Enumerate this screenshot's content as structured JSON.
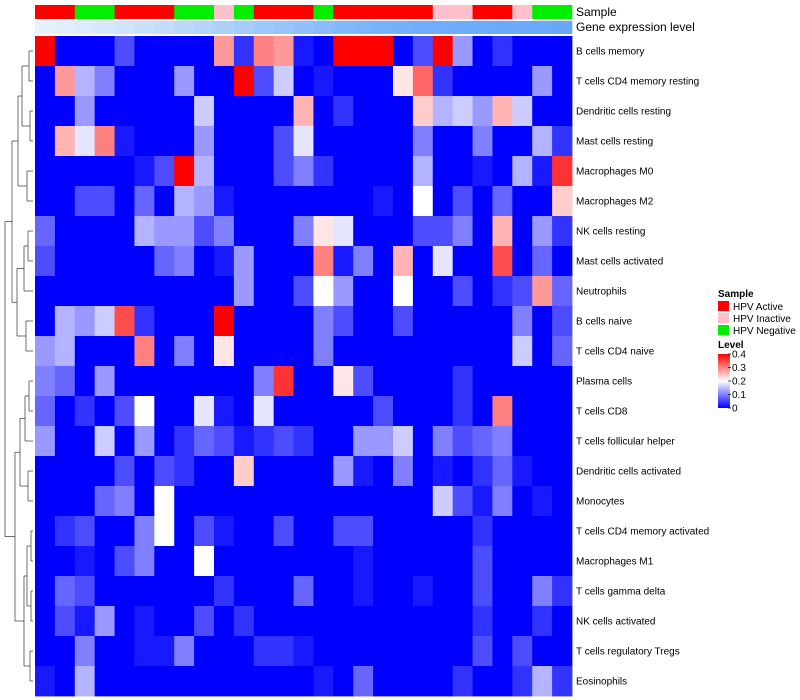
{
  "chart_data": {
    "type": "heatmap",
    "annotation_labels": {
      "sample": "Sample",
      "gene": "Gene expression level"
    },
    "sample_groups": [
      "HPV Active",
      "HPV Active",
      "HPV Negative",
      "HPV Negative",
      "HPV Active",
      "HPV Active",
      "HPV Active",
      "HPV Negative",
      "HPV Negative",
      "HPV Inactive",
      "HPV Negative",
      "HPV Active",
      "HPV Active",
      "HPV Active",
      "HPV Negative",
      "HPV Active",
      "HPV Active",
      "HPV Active",
      "HPV Active",
      "HPV Active",
      "HPV Inactive",
      "HPV Inactive",
      "HPV Active",
      "HPV Active",
      "HPV Inactive",
      "HPV Negative",
      "HPV Negative"
    ],
    "gene_expression_colors": [
      "#e6f2fb",
      "#e1effb",
      "#dcecfb",
      "#d6e9fb",
      "#d0e5fb",
      "#c9e1fb",
      "#c2dcfb",
      "#bbd8fb",
      "#b4d4fb",
      "#add0fb",
      "#a6ccfb",
      "#9fc8fb",
      "#98c4fb",
      "#91c0fb",
      "#8abcfb",
      "#83b8fb",
      "#7db5fb",
      "#78b2fb",
      "#74b0fb",
      "#71aefb",
      "#6facfb",
      "#6dabfb",
      "#6caafb",
      "#6ba9fb",
      "#6aa9fb",
      "#69a8fb",
      "#68a8fb"
    ],
    "rows": [
      "B cells memory",
      "T cells CD4 memory resting",
      "Dendritic cells resting",
      "Mast cells resting",
      "Macrophages M0",
      "Macrophages M2",
      "NK cells resting",
      "Mast cells activated",
      "Neutrophils",
      "B cells naive",
      "T cells CD4 naive",
      "Plasma cells",
      "T cells CD8",
      "T cells follicular helper",
      "Dendritic cells activated",
      "Monocytes",
      "T cells CD4 memory activated",
      "Macrophages M1",
      "T cells gamma delta",
      "NK cells activated",
      "T cells regulatory  Tregs",
      "Eosinophils"
    ],
    "values": [
      [
        0.4,
        0.0,
        0.0,
        0.0,
        0.06,
        0.0,
        0.0,
        0.0,
        0.0,
        0.28,
        0.04,
        0.3,
        0.28,
        0.02,
        0.0,
        0.4,
        0.4,
        0.4,
        0.0,
        0.06,
        0.4,
        0.12,
        0.0,
        0.04,
        0.0,
        0.0,
        0.0
      ],
      [
        0.0,
        0.28,
        0.14,
        0.1,
        0.0,
        0.0,
        0.0,
        0.12,
        0.0,
        0.0,
        0.4,
        0.06,
        0.16,
        0.0,
        0.02,
        0.0,
        0.0,
        0.0,
        0.22,
        0.32,
        0.04,
        0.0,
        0.0,
        0.0,
        0.0,
        0.12,
        0.0
      ],
      [
        0.0,
        0.0,
        0.12,
        0.0,
        0.0,
        0.0,
        0.0,
        0.0,
        0.16,
        0.0,
        0.0,
        0.0,
        0.0,
        0.26,
        0.0,
        0.04,
        0.0,
        0.0,
        0.0,
        0.24,
        0.14,
        0.16,
        0.12,
        0.26,
        0.16,
        0.0,
        0.0
      ],
      [
        0.0,
        0.26,
        0.18,
        0.3,
        0.02,
        0.0,
        0.0,
        0.0,
        0.12,
        0.0,
        0.0,
        0.0,
        0.06,
        0.18,
        0.0,
        0.0,
        0.0,
        0.0,
        0.0,
        0.1,
        0.0,
        0.0,
        0.1,
        0.0,
        0.0,
        0.14,
        0.04
      ],
      [
        0.0,
        0.0,
        0.0,
        0.0,
        0.0,
        0.02,
        0.06,
        0.4,
        0.14,
        0.0,
        0.0,
        0.0,
        0.06,
        0.1,
        0.04,
        0.0,
        0.0,
        0.0,
        0.0,
        0.14,
        0.0,
        0.0,
        0.02,
        0.0,
        0.14,
        0.02,
        0.36
      ],
      [
        0.0,
        0.0,
        0.06,
        0.06,
        0.0,
        0.08,
        0.0,
        0.14,
        0.12,
        0.02,
        0.0,
        0.0,
        0.0,
        0.0,
        0.0,
        0.0,
        0.0,
        0.02,
        0.0,
        0.2,
        0.0,
        0.06,
        0.0,
        0.08,
        0.0,
        0.0,
        0.24
      ],
      [
        0.08,
        0.0,
        0.0,
        0.0,
        0.0,
        0.14,
        0.12,
        0.12,
        0.06,
        0.1,
        0.0,
        0.0,
        0.0,
        0.1,
        0.22,
        0.18,
        0.0,
        0.0,
        0.0,
        0.06,
        0.06,
        0.1,
        0.0,
        0.26,
        0.0,
        0.12,
        0.04
      ],
      [
        0.06,
        0.0,
        0.0,
        0.0,
        0.0,
        0.0,
        0.08,
        0.1,
        0.0,
        0.02,
        0.12,
        0.0,
        0.0,
        0.0,
        0.3,
        0.02,
        0.1,
        0.0,
        0.26,
        0.0,
        0.18,
        0.0,
        0.0,
        0.34,
        0.0,
        0.08,
        0.0
      ],
      [
        0.0,
        0.0,
        0.0,
        0.0,
        0.0,
        0.0,
        0.0,
        0.0,
        0.0,
        0.0,
        0.12,
        0.0,
        0.0,
        0.06,
        0.2,
        0.12,
        0.0,
        0.0,
        0.2,
        0.0,
        0.0,
        0.06,
        0.0,
        0.04,
        0.06,
        0.28,
        0.08
      ],
      [
        0.0,
        0.14,
        0.12,
        0.16,
        0.34,
        0.04,
        0.0,
        0.0,
        0.0,
        0.4,
        0.0,
        0.0,
        0.0,
        0.0,
        0.1,
        0.06,
        0.0,
        0.0,
        0.06,
        0.0,
        0.0,
        0.0,
        0.0,
        0.0,
        0.1,
        0.0,
        0.06
      ],
      [
        0.12,
        0.14,
        0.0,
        0.0,
        0.0,
        0.3,
        0.0,
        0.1,
        0.0,
        0.22,
        0.0,
        0.0,
        0.0,
        0.0,
        0.1,
        0.0,
        0.0,
        0.0,
        0.0,
        0.0,
        0.0,
        0.0,
        0.0,
        0.0,
        0.16,
        0.0,
        0.08
      ],
      [
        0.1,
        0.08,
        0.0,
        0.12,
        0.0,
        0.0,
        0.0,
        0.0,
        0.0,
        0.0,
        0.0,
        0.1,
        0.36,
        0.0,
        0.0,
        0.22,
        0.06,
        0.0,
        0.0,
        0.0,
        0.0,
        0.04,
        0.0,
        0.0,
        0.0,
        0.0,
        0.0
      ],
      [
        0.08,
        0.0,
        0.04,
        0.0,
        0.06,
        0.2,
        0.0,
        0.0,
        0.18,
        0.02,
        0.0,
        0.18,
        0.0,
        0.0,
        0.0,
        0.0,
        0.0,
        0.06,
        0.0,
        0.0,
        0.0,
        0.04,
        0.0,
        0.3,
        0.0,
        0.0,
        0.0
      ],
      [
        0.12,
        0.0,
        0.0,
        0.16,
        0.0,
        0.12,
        0.0,
        0.04,
        0.08,
        0.06,
        0.02,
        0.04,
        0.06,
        0.04,
        0.0,
        0.0,
        0.12,
        0.12,
        0.16,
        0.0,
        0.1,
        0.06,
        0.08,
        0.1,
        0.0,
        0.0,
        0.0
      ],
      [
        0.0,
        0.0,
        0.0,
        0.0,
        0.06,
        0.0,
        0.06,
        0.04,
        0.0,
        0.0,
        0.24,
        0.0,
        0.0,
        0.0,
        0.0,
        0.12,
        0.02,
        0.0,
        0.1,
        0.0,
        0.02,
        0.0,
        0.04,
        0.08,
        0.02,
        0.0,
        0.0
      ],
      [
        0.0,
        0.0,
        0.0,
        0.08,
        0.1,
        0.0,
        0.2,
        0.0,
        0.0,
        0.0,
        0.0,
        0.0,
        0.0,
        0.0,
        0.0,
        0.0,
        0.0,
        0.0,
        0.0,
        0.0,
        0.16,
        0.06,
        0.02,
        0.1,
        0.0,
        0.02,
        0.0
      ],
      [
        0.0,
        0.04,
        0.06,
        0.0,
        0.0,
        0.1,
        0.2,
        0.0,
        0.06,
        0.02,
        0.0,
        0.0,
        0.06,
        0.0,
        0.0,
        0.06,
        0.06,
        0.0,
        0.0,
        0.0,
        0.0,
        0.0,
        0.04,
        0.0,
        0.0,
        0.0,
        0.0
      ],
      [
        0.0,
        0.0,
        0.02,
        0.0,
        0.06,
        0.1,
        0.0,
        0.0,
        0.2,
        0.0,
        0.0,
        0.0,
        0.0,
        0.0,
        0.0,
        0.0,
        0.02,
        0.0,
        0.0,
        0.0,
        0.0,
        0.0,
        0.06,
        0.0,
        0.0,
        0.0,
        0.0
      ],
      [
        0.0,
        0.08,
        0.06,
        0.0,
        0.0,
        0.0,
        0.0,
        0.0,
        0.0,
        0.04,
        0.0,
        0.0,
        0.0,
        0.08,
        0.0,
        0.0,
        0.02,
        0.0,
        0.0,
        0.02,
        0.0,
        0.0,
        0.06,
        0.0,
        0.0,
        0.1,
        0.04
      ],
      [
        0.0,
        0.06,
        0.02,
        0.12,
        0.0,
        0.02,
        0.0,
        0.0,
        0.06,
        0.0,
        0.04,
        0.0,
        0.0,
        0.0,
        0.0,
        0.0,
        0.0,
        0.0,
        0.0,
        0.0,
        0.0,
        0.0,
        0.04,
        0.0,
        0.0,
        0.04,
        0.0
      ],
      [
        0.0,
        0.0,
        0.1,
        0.0,
        0.0,
        0.02,
        0.02,
        0.1,
        0.0,
        0.0,
        0.0,
        0.04,
        0.04,
        0.02,
        0.0,
        0.0,
        0.0,
        0.0,
        0.0,
        0.0,
        0.0,
        0.0,
        0.06,
        0.0,
        0.06,
        0.0,
        0.0
      ],
      [
        0.02,
        0.0,
        0.14,
        0.0,
        0.0,
        0.0,
        0.0,
        0.0,
        0.0,
        0.0,
        0.0,
        0.0,
        0.0,
        0.0,
        0.02,
        0.0,
        0.08,
        0.0,
        0.0,
        0.0,
        0.0,
        0.04,
        0.0,
        0.0,
        0.04,
        0.14,
        0.04
      ]
    ],
    "legend": {
      "sample_title": "Sample",
      "sample_entries": [
        {
          "label": "HPV Active",
          "color": "#ff0000"
        },
        {
          "label": "HPV Inactive",
          "color": "#ffc0cb"
        },
        {
          "label": "HPV Negative",
          "color": "#00ee00"
        }
      ],
      "level_title": "Level",
      "level_ticks": [
        "0.4",
        "0.3",
        "0.2",
        "0.1",
        "0"
      ],
      "level_range": [
        0,
        0.4
      ]
    },
    "colorscale": {
      "low": "#0000ff",
      "mid": "#ffffff",
      "high": "#ff0000",
      "mid_value": 0.2
    }
  }
}
